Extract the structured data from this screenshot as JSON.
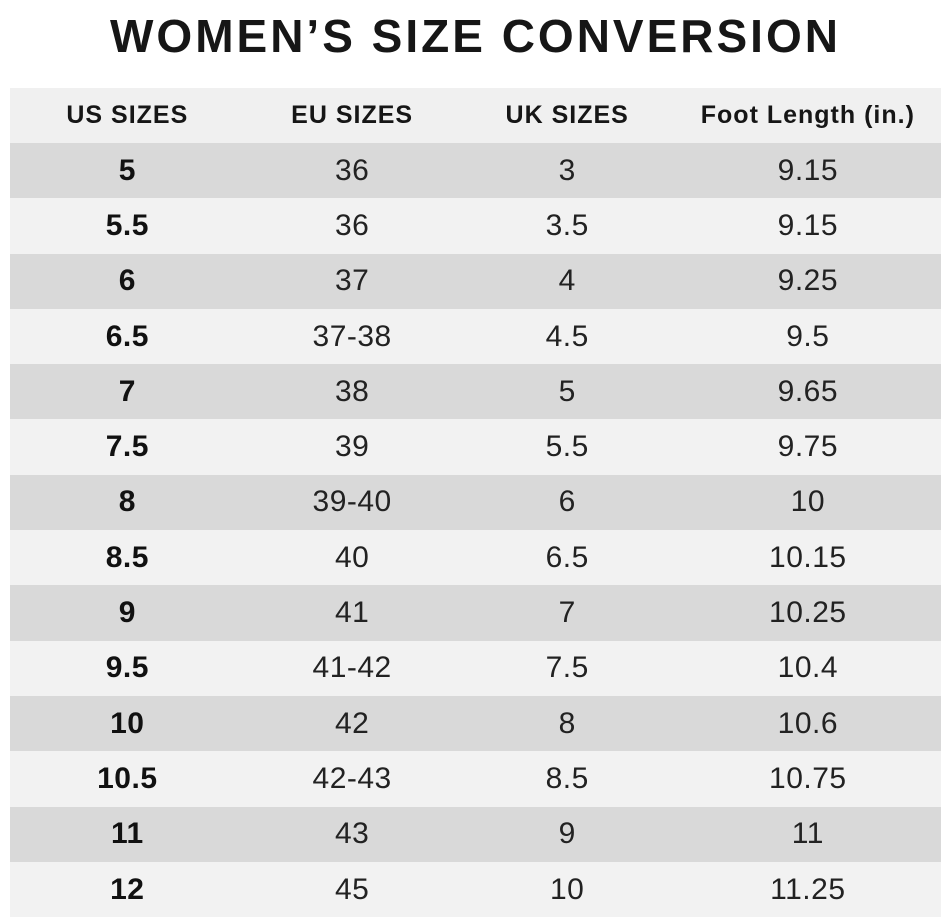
{
  "title": "WOMEN’S SIZE CONVERSION",
  "colors": {
    "page_bg": "#ffffff",
    "header_bg": "#f0f0f0",
    "row_light": "#f2f2f2",
    "row_dark": "#d9d9d9",
    "text_dark": "#161616",
    "text_body": "#222222"
  },
  "chart_data": {
    "type": "table",
    "title": "WOMEN’S SIZE CONVERSION",
    "columns": [
      "US SIZES",
      "EU SIZES",
      "UK SIZES",
      "Foot Length (in.)"
    ],
    "rows": [
      [
        "5",
        "36",
        "3",
        "9.15"
      ],
      [
        "5.5",
        "36",
        "3.5",
        "9.15"
      ],
      [
        "6",
        "37",
        "4",
        "9.25"
      ],
      [
        "6.5",
        "37-38",
        "4.5",
        "9.5"
      ],
      [
        "7",
        "38",
        "5",
        "9.65"
      ],
      [
        "7.5",
        "39",
        "5.5",
        "9.75"
      ],
      [
        "8",
        "39-40",
        "6",
        "10"
      ],
      [
        "8.5",
        "40",
        "6.5",
        "10.15"
      ],
      [
        "9",
        "41",
        "7",
        "10.25"
      ],
      [
        "9.5",
        "41-42",
        "7.5",
        "10.4"
      ],
      [
        "10",
        "42",
        "8",
        "10.6"
      ],
      [
        "10.5",
        "42-43",
        "8.5",
        "10.75"
      ],
      [
        "11",
        "43",
        "9",
        "11"
      ],
      [
        "12",
        "45",
        "10",
        "11.25"
      ]
    ]
  }
}
